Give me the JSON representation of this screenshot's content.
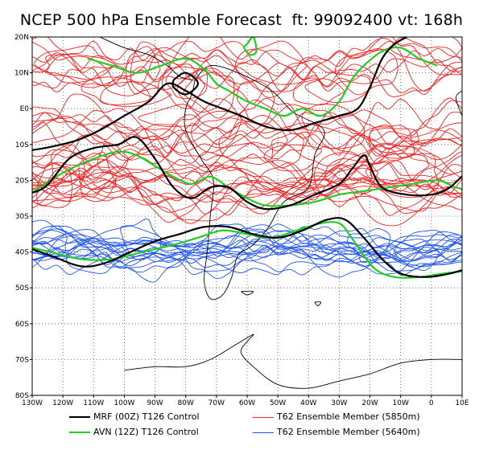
{
  "title": "NCEP 500 hPa Ensemble Forecast  ft: 99092400 vt: 168h",
  "lat_labels": [
    "20N",
    "10N",
    "E0",
    "10S",
    "20S",
    "30S",
    "40S",
    "50S",
    "60S",
    "70S",
    "80S"
  ],
  "lon_labels": [
    "130W",
    "120W",
    "110W",
    "100W",
    "90W",
    "80W",
    "70W",
    "60W",
    "50W",
    "40W",
    "30W",
    "20W",
    "10W",
    "0",
    "10E"
  ],
  "legend": [
    {
      "label": "MRF (00Z) T126 Control",
      "color": "#000000"
    },
    {
      "label": "AVN (12Z) T126 Control",
      "color": "#22cc22"
    },
    {
      "label": "T62 Ensemble Member (5850m)",
      "color": "#ee2222"
    },
    {
      "label": "T62 Ensemble Member (5640m)",
      "color": "#2255ee"
    }
  ],
  "colors": {
    "red_members": "#ee2222",
    "blue_members": "#2255ee",
    "mrf": "#000000",
    "avn": "#22cc22",
    "coast": "#000000"
  },
  "map_extent": {
    "lon": [
      -130,
      10
    ],
    "lat": [
      -80,
      20
    ]
  }
}
